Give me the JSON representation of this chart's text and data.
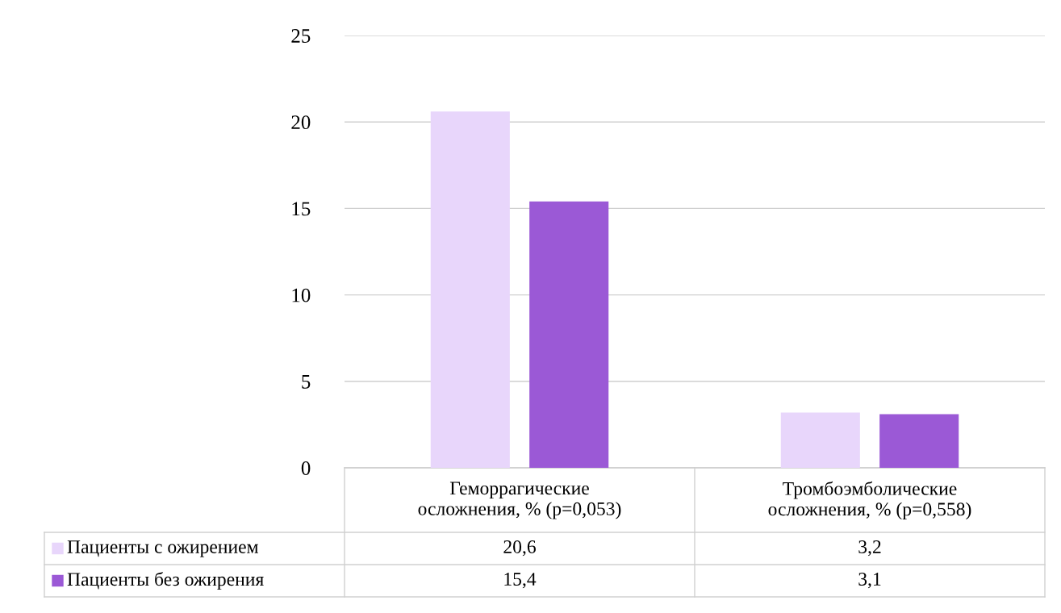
{
  "chart_data": {
    "type": "bar",
    "categories": [
      "Геморрагические\nосложнения, % (p=0,053)",
      "Тромбоэмболические\nосложнения, % (p=0,558)"
    ],
    "series": [
      {
        "name": "Пациенты с ожирением",
        "color": "#e8d6fb",
        "values": [
          20.6,
          3.2
        ],
        "value_labels": [
          "20,6",
          "3,2"
        ]
      },
      {
        "name": "Пациенты без ожирения",
        "color": "#9b59d6",
        "values": [
          15.4,
          3.1
        ],
        "value_labels": [
          "15,4",
          "3,1"
        ]
      }
    ],
    "ylim": [
      0,
      25
    ],
    "yticks": [
      0,
      5,
      10,
      15,
      20,
      25
    ],
    "grid": "y",
    "legend": "bottom"
  }
}
